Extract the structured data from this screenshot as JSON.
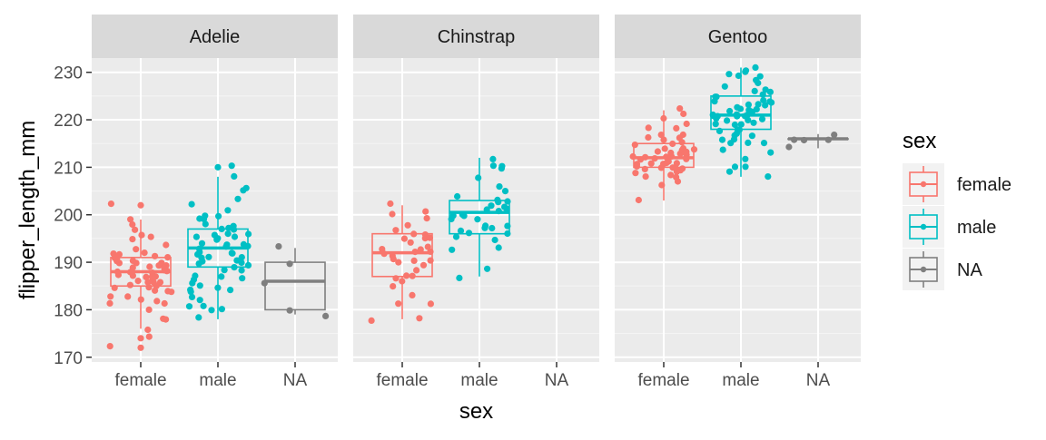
{
  "chart_data": {
    "type": "boxplot",
    "xlabel": "sex",
    "ylabel": "flipper_length_mm",
    "ylim": [
      169,
      233
    ],
    "yticks": [
      170,
      180,
      190,
      200,
      210,
      220,
      230
    ],
    "categories": [
      "female",
      "male",
      "NA"
    ],
    "grid": true,
    "legend": {
      "title": "sex",
      "position": "right",
      "entries": [
        {
          "label": "female",
          "color": "#F8766D"
        },
        {
          "label": "male",
          "color": "#00BFC4"
        },
        {
          "label": "NA",
          "color": "#7F7F7F"
        }
      ]
    },
    "panels": [
      {
        "name": "Adelie",
        "boxes": [
          {
            "category": "female",
            "min": 176,
            "q1": 185,
            "median": 188,
            "q3": 191,
            "max": 199,
            "outliers": [
              172,
              174,
              202
            ],
            "points": [
              181,
              183,
              184,
              185,
              185,
              186,
              186,
              187,
              187,
              187,
              188,
              188,
              188,
              189,
              189,
              189,
              190,
              190,
              190,
              191,
              191,
              192,
              192,
              193,
              194,
              195,
              195,
              196,
              197,
              198,
              199,
              176,
              178,
              178,
              180,
              182,
              184,
              186,
              187,
              188,
              189,
              190,
              191,
              192,
              184,
              185,
              186,
              187,
              188,
              181,
              182,
              183,
              185,
              186,
              187,
              188,
              189,
              190,
              191,
              172,
              174,
              202
            ]
          },
          {
            "category": "male",
            "min": 178,
            "q1": 189,
            "median": 193,
            "q3": 197,
            "max": 208,
            "outliers": [
              210
            ],
            "points": [
              178,
              180,
              181,
              182,
              184,
              184,
              185,
              186,
              187,
              187,
              188,
              189,
              189,
              190,
              190,
              191,
              191,
              191,
              192,
              192,
              193,
              193,
              193,
              194,
              194,
              195,
              195,
              195,
              196,
              196,
              197,
              197,
              198,
              198,
              199,
              200,
              201,
              202,
              203,
              205,
              206,
              208,
              210,
              181,
              183,
              186,
              188,
              190,
              192,
              194,
              196,
              197,
              180,
              184,
              190,
              195,
              200,
              185,
              192,
              199,
              187
            ]
          },
          {
            "category": "NA",
            "min": 179,
            "q1": 180,
            "median": 186,
            "q3": 190,
            "max": 193,
            "outliers": [],
            "points": [
              179,
              180,
              186,
              190,
              193
            ]
          }
        ]
      },
      {
        "name": "Chinstrap",
        "boxes": [
          {
            "category": "female",
            "min": 178,
            "q1": 187,
            "median": 192,
            "q3": 196,
            "max": 202,
            "outliers": [],
            "points": [
              178,
              181,
              181,
              183,
              185,
              186,
              187,
              187,
              188,
              189,
              190,
              190,
              191,
              191,
              192,
              192,
              192,
              193,
              193,
              194,
              195,
              195,
              196,
              196,
              197,
              198,
              199,
              200,
              201,
              202,
              178,
              187,
              190,
              193,
              195
            ]
          },
          {
            "category": "male",
            "min": 187,
            "q1": 196,
            "median": 200.5,
            "q3": 203,
            "max": 212,
            "outliers": [],
            "points": [
              187,
              189,
              193,
              195,
              196,
              196,
              197,
              197,
              198,
              199,
              200,
              200,
              201,
              201,
              202,
              202,
              203,
              203,
              205,
              206,
              210,
              210,
              210,
              212,
              195,
              198,
              200,
              201,
              203,
              197,
              199,
              204,
              208,
              193
            ]
          }
        ]
      },
      {
        "name": "Gentoo",
        "boxes": [
          {
            "category": "female",
            "min": 203,
            "q1": 210,
            "median": 212,
            "q3": 215,
            "max": 222,
            "outliers": [],
            "points": [
              203,
              206,
              207,
              208,
              208,
              209,
              209,
              210,
              210,
              210,
              211,
              211,
              211,
              212,
              212,
              212,
              212,
              213,
              213,
              213,
              214,
              214,
              215,
              215,
              216,
              216,
              217,
              217,
              218,
              219,
              220,
              221,
              222,
              210,
              211,
              212,
              213,
              214,
              215,
              209,
              210,
              211,
              212,
              213,
              208,
              210,
              212,
              214,
              216,
              218,
              211,
              213
            ]
          },
          {
            "category": "male",
            "min": 208,
            "q1": 218,
            "median": 221,
            "q3": 225,
            "max": 231,
            "outliers": [],
            "points": [
              208,
              209,
              210,
              212,
              214,
              215,
              215,
              216,
              217,
              218,
              218,
              219,
              219,
              220,
              220,
              221,
              221,
              221,
              222,
              222,
              222,
              223,
              223,
              224,
              224,
              225,
              225,
              226,
              227,
              228,
              229,
              230,
              230,
              231,
              215,
              217,
              219,
              220,
              221,
              222,
              223,
              224,
              226,
              228,
              230,
              216,
              218,
              221,
              223,
              225,
              220,
              222,
              224,
              221,
              219,
              217,
              226,
              229,
              213,
              210,
              221
            ]
          },
          {
            "category": "NA",
            "min": 214,
            "q1": 216,
            "median": 216,
            "q3": 216,
            "max": 217,
            "outliers": [],
            "points": [
              214,
              216,
              216,
              216,
              217
            ]
          }
        ]
      }
    ]
  }
}
